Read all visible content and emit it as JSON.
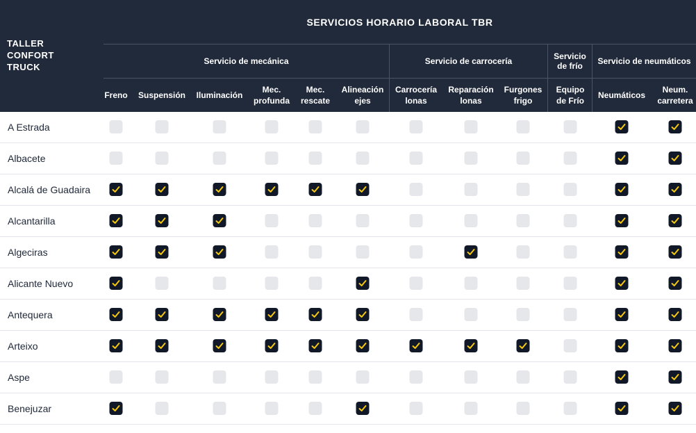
{
  "header": {
    "taller_lines": [
      "TALLER",
      "CONFORT",
      "TRUCK"
    ],
    "title": "SERVICIOS HORARIO LABORAL TBR",
    "groups": [
      {
        "label_lines": [
          "Servicio de mecánica"
        ]
      },
      {
        "label_lines": [
          "Servicio de carrocería"
        ]
      },
      {
        "label_lines": [
          "Servicio",
          "de frío"
        ]
      },
      {
        "label_lines": [
          "Servicio de neumáticos"
        ]
      }
    ],
    "columns": [
      {
        "lines": [
          "Freno"
        ]
      },
      {
        "lines": [
          "Suspensión"
        ]
      },
      {
        "lines": [
          "Iluminación"
        ]
      },
      {
        "lines": [
          "Mec.",
          "profunda"
        ]
      },
      {
        "lines": [
          "Mec.",
          "rescate"
        ]
      },
      {
        "lines": [
          "Alineación",
          "ejes"
        ]
      },
      {
        "lines": [
          "Carrocería",
          "lonas"
        ]
      },
      {
        "lines": [
          "Reparación",
          "lonas"
        ]
      },
      {
        "lines": [
          "Furgones",
          "frigo"
        ]
      },
      {
        "lines": [
          "Equipo",
          "de Frío"
        ]
      },
      {
        "lines": [
          "Neumáticos"
        ]
      },
      {
        "lines": [
          "Neum.",
          "carretera"
        ]
      }
    ]
  },
  "rows": [
    {
      "name": "A Estrada",
      "checks": [
        0,
        0,
        0,
        0,
        0,
        0,
        0,
        0,
        0,
        0,
        1,
        1
      ]
    },
    {
      "name": "Albacete",
      "checks": [
        0,
        0,
        0,
        0,
        0,
        0,
        0,
        0,
        0,
        0,
        1,
        1
      ]
    },
    {
      "name": "Alcalá de Guadaira",
      "checks": [
        1,
        1,
        1,
        1,
        1,
        1,
        0,
        0,
        0,
        0,
        1,
        1
      ]
    },
    {
      "name": "Alcantarilla",
      "checks": [
        1,
        1,
        1,
        0,
        0,
        0,
        0,
        0,
        0,
        0,
        1,
        1
      ]
    },
    {
      "name": "Algeciras",
      "checks": [
        1,
        1,
        1,
        0,
        0,
        0,
        0,
        1,
        0,
        0,
        1,
        1
      ]
    },
    {
      "name": "Alicante Nuevo",
      "checks": [
        1,
        0,
        0,
        0,
        0,
        1,
        0,
        0,
        0,
        0,
        1,
        1
      ]
    },
    {
      "name": "Antequera",
      "checks": [
        1,
        1,
        1,
        1,
        1,
        1,
        0,
        0,
        0,
        0,
        1,
        1
      ]
    },
    {
      "name": "Arteixo",
      "checks": [
        1,
        1,
        1,
        1,
        1,
        1,
        1,
        1,
        1,
        0,
        1,
        1
      ]
    },
    {
      "name": "Aspe",
      "checks": [
        0,
        0,
        0,
        0,
        0,
        0,
        0,
        0,
        0,
        0,
        1,
        1
      ]
    },
    {
      "name": "Benejuzar",
      "checks": [
        1,
        0,
        0,
        0,
        0,
        1,
        0,
        0,
        0,
        0,
        1,
        1
      ]
    }
  ],
  "colors": {
    "header_bg": "#212a3b",
    "check_on": "#111827",
    "check_mark": "#f6c90e",
    "check_off": "#e5e7eb"
  },
  "icons": {
    "checked": "check-icon"
  }
}
